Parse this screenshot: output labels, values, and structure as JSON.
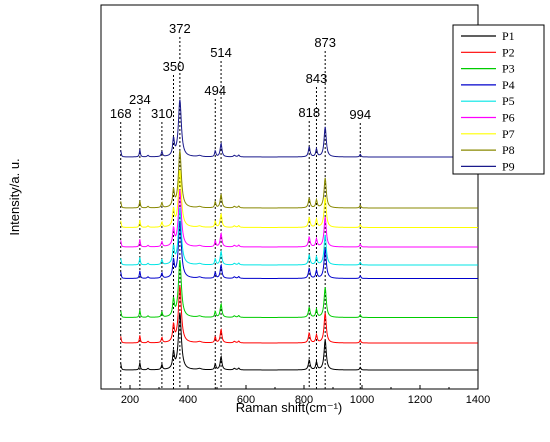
{
  "chart_data": {
    "type": "line",
    "title": "",
    "xlabel": "Raman shift(cm⁻¹)",
    "ylabel": "Intensity/a. u.",
    "xlim": [
      100,
      1400
    ],
    "x_ticks": [
      200,
      400,
      600,
      800,
      1000,
      1200,
      1400
    ],
    "y_ticks_labeled": false,
    "grid": false,
    "legend_placement": "top-right",
    "peaks": [
      168,
      234,
      310,
      350,
      372,
      494,
      514,
      818,
      843,
      873,
      994
    ],
    "peak_labels": [
      "168",
      "234",
      "310",
      "350",
      "372",
      "494",
      "514",
      "818",
      "843",
      "873",
      "994"
    ],
    "series": [
      {
        "name": "P1",
        "color": "#000000",
        "baseline": 0.0
      },
      {
        "name": "P2",
        "color": "#ff0000",
        "baseline": 0.9
      },
      {
        "name": "P3",
        "color": "#00cc00",
        "baseline": 1.75
      },
      {
        "name": "P4",
        "color": "#0000cc",
        "baseline": 3.05
      },
      {
        "name": "P5",
        "color": "#00e5e5",
        "baseline": 3.5
      },
      {
        "name": "P6",
        "color": "#ff00ff",
        "baseline": 4.1
      },
      {
        "name": "P7",
        "color": "#ffff00",
        "baseline": 4.75
      },
      {
        "name": "P8",
        "color": "#888800",
        "baseline": 5.4
      },
      {
        "name": "P9",
        "color": "#1a1a8c",
        "baseline": 7.1
      }
    ]
  }
}
